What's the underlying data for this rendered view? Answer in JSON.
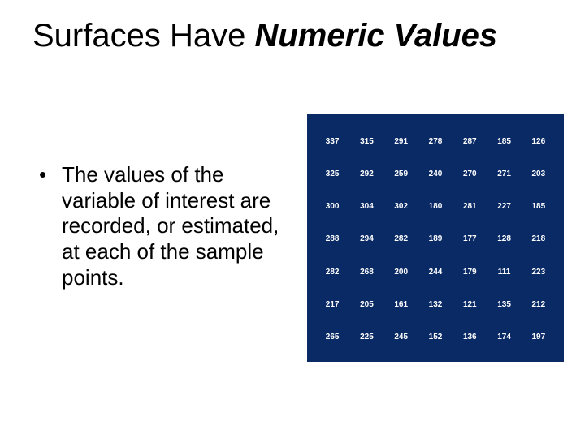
{
  "title": {
    "part1": "Surfaces Have ",
    "part2": "Numeric Values"
  },
  "bullet": {
    "marker": "•",
    "text": "The values of the variable of interest are recorded, or estimated, at each of the sample points."
  },
  "grid": {
    "background_color": "#0a2a66",
    "text_color": "#ffffff",
    "cell_fontsize": 10,
    "rows": [
      [
        "337",
        "315",
        "291",
        "278",
        "287",
        "185",
        "126"
      ],
      [
        "325",
        "292",
        "259",
        "240",
        "270",
        "271",
        "203"
      ],
      [
        "300",
        "304",
        "302",
        "180",
        "281",
        "227",
        "185"
      ],
      [
        "288",
        "294",
        "282",
        "189",
        "177",
        "128",
        "218"
      ],
      [
        "282",
        "268",
        "200",
        "244",
        "179",
        "111",
        "223"
      ],
      [
        "217",
        "205",
        "161",
        "132",
        "121",
        "135",
        "212"
      ],
      [
        "265",
        "225",
        "245",
        "152",
        "136",
        "174",
        "197"
      ]
    ]
  },
  "colors": {
    "background": "#ffffff",
    "text": "#000000"
  }
}
